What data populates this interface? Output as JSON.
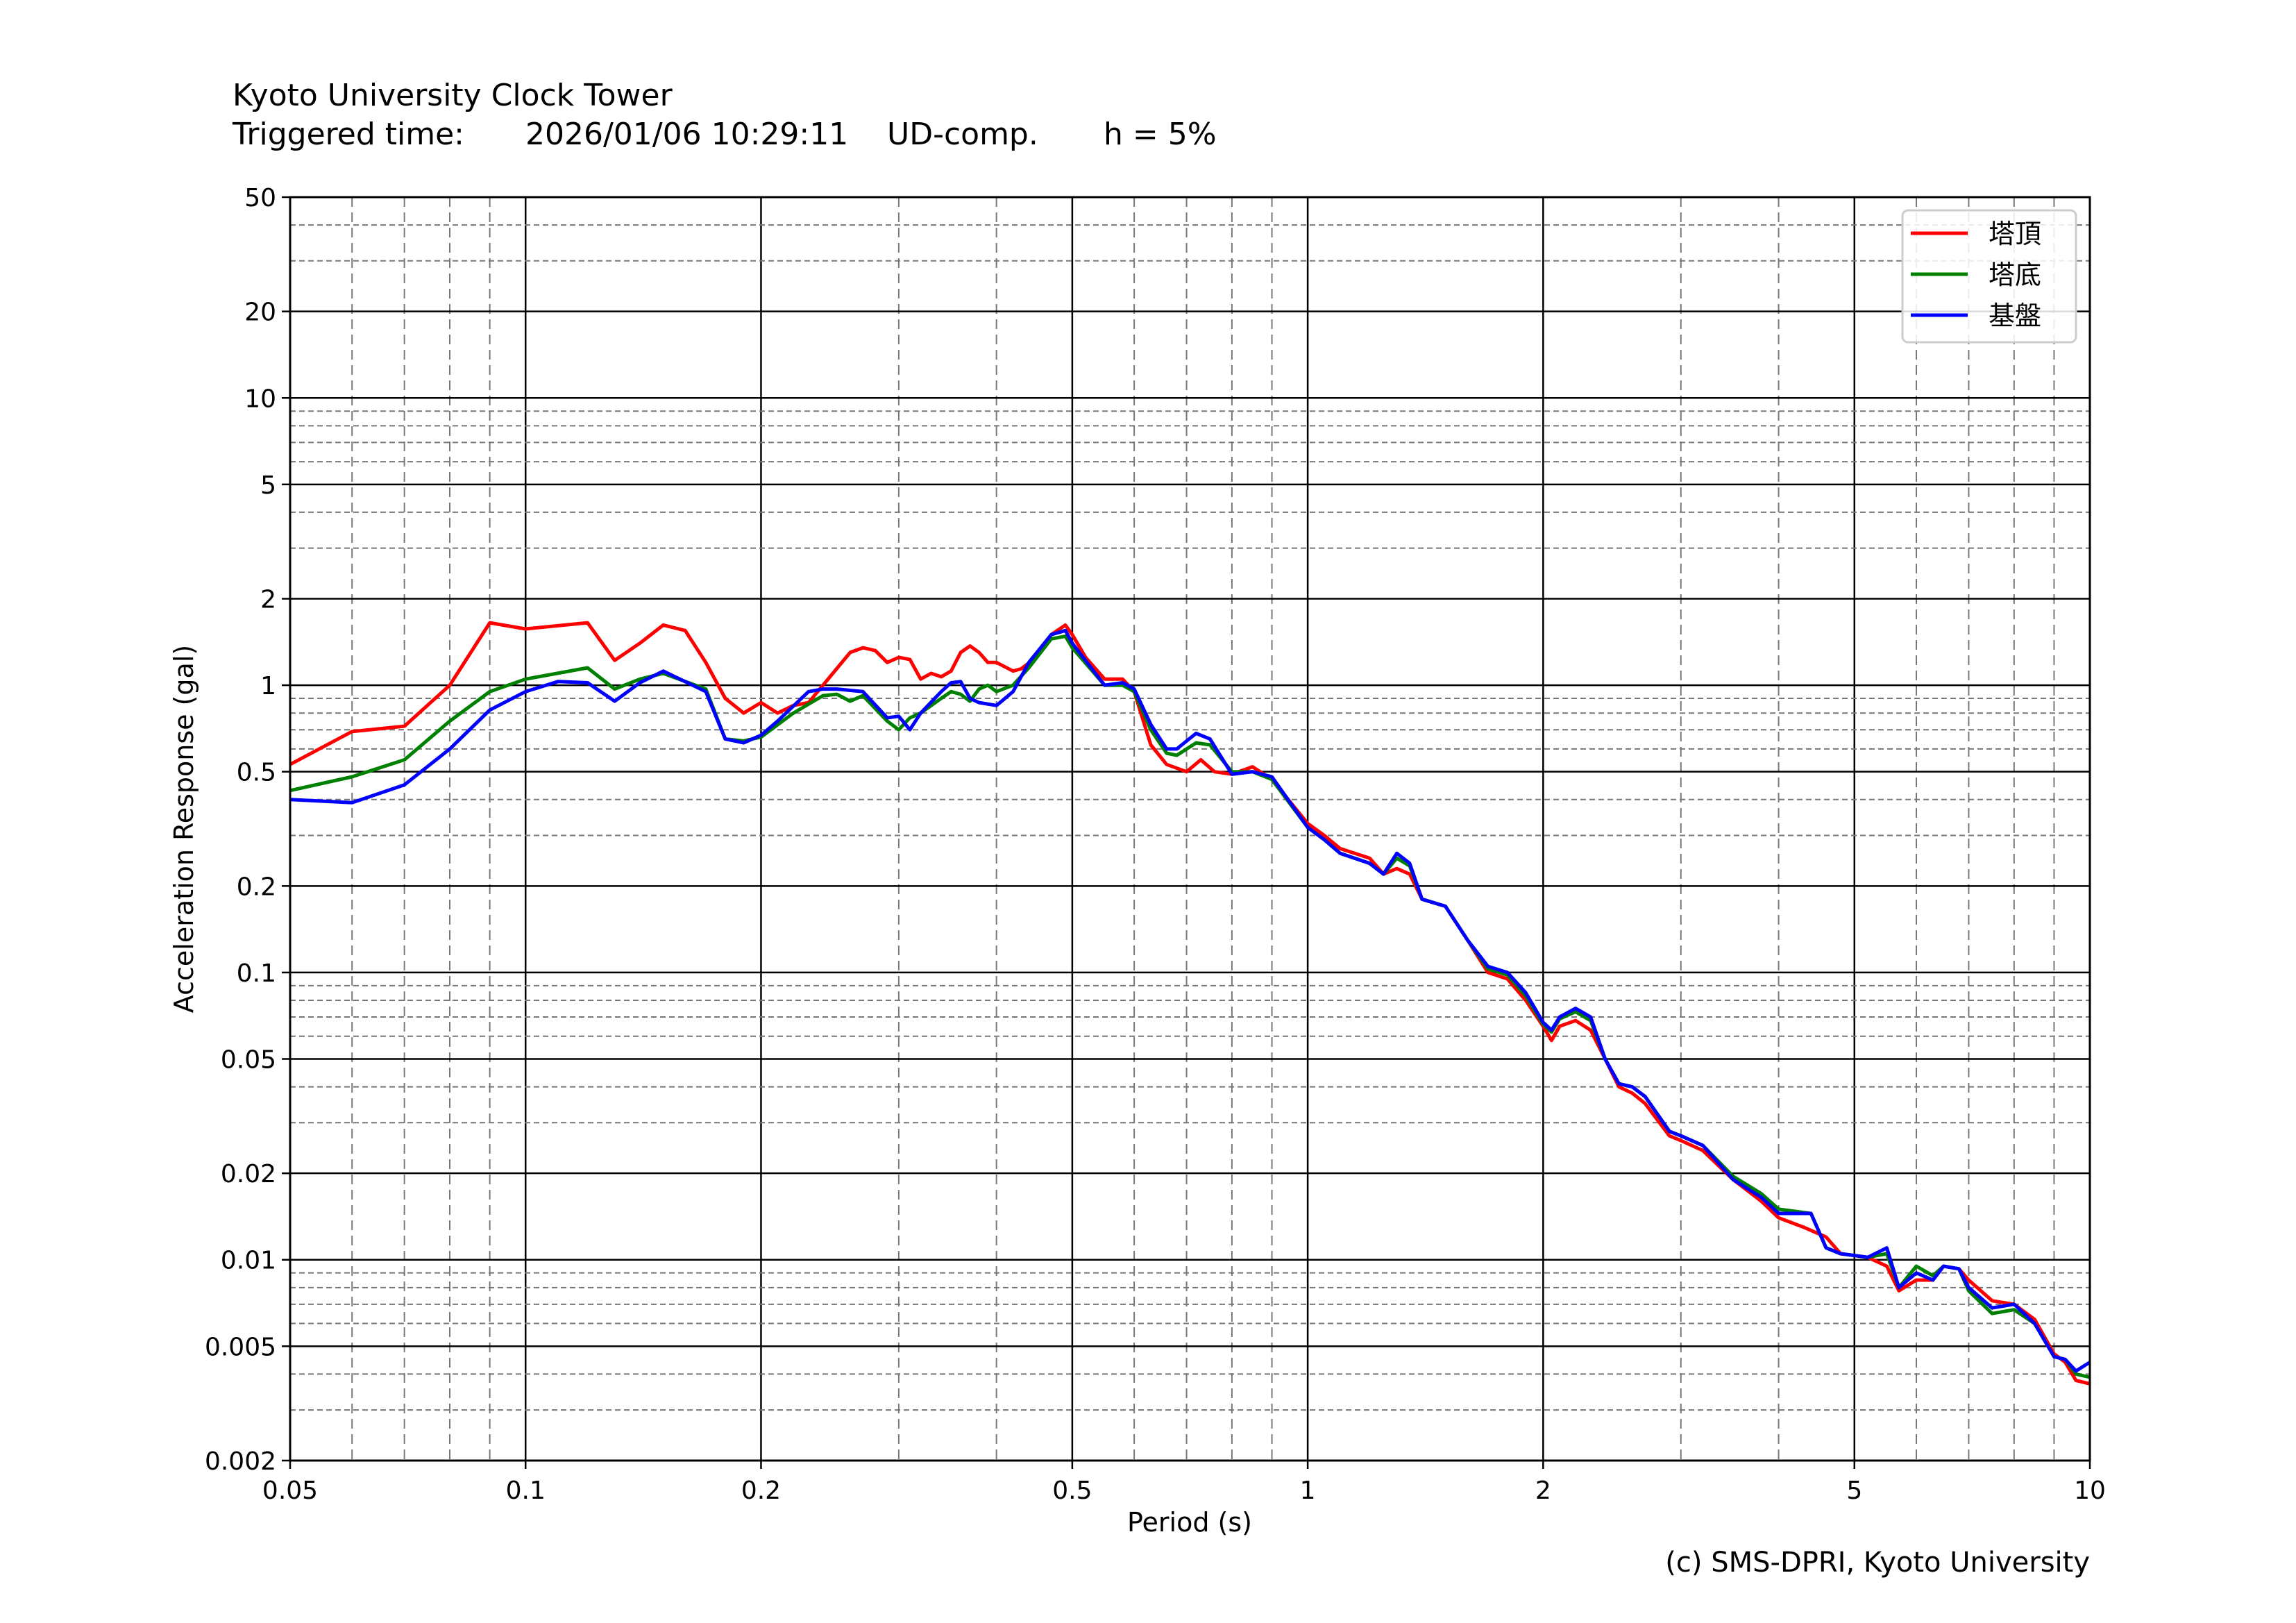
{
  "header": {
    "title": "Kyoto University Clock Tower",
    "trigger_label": "Triggered time:",
    "trigger_time": "2026/01/06 10:29:11",
    "component": "UD-comp.",
    "damping": "h = 5%"
  },
  "footer": {
    "credit": "(c) SMS-DPRI, Kyoto University"
  },
  "chart_data": {
    "type": "line",
    "title": "Kyoto University Clock Tower",
    "xlabel": "Period (s)",
    "ylabel": "Acceleration Response (gal)",
    "xscale": "log",
    "yscale": "log",
    "xlim": [
      0.05,
      10
    ],
    "ylim": [
      0.002,
      50
    ],
    "xticks": [
      0.05,
      0.1,
      0.2,
      0.5,
      1,
      2,
      5,
      10
    ],
    "xtick_labels": [
      "0.05",
      "0.1",
      "0.2",
      "0.5",
      "1",
      "2",
      "5",
      "10"
    ],
    "yticks": [
      0.002,
      0.005,
      0.01,
      0.02,
      0.05,
      0.1,
      0.2,
      0.5,
      1,
      2,
      5,
      10,
      20,
      50
    ],
    "ytick_labels": [
      "0.002",
      "0.005",
      "0.01",
      "0.02",
      "0.05",
      "0.1",
      "0.2",
      "0.5",
      "1",
      "2",
      "5",
      "10",
      "20",
      "50"
    ],
    "grid": true,
    "legend_position": "top-right",
    "series": [
      {
        "name": "塔頂",
        "color": "#ff0000",
        "x": [
          0.05,
          0.06,
          0.07,
          0.08,
          0.09,
          0.1,
          0.12,
          0.13,
          0.14,
          0.15,
          0.16,
          0.17,
          0.18,
          0.19,
          0.2,
          0.21,
          0.22,
          0.23,
          0.24,
          0.26,
          0.27,
          0.28,
          0.29,
          0.3,
          0.31,
          0.32,
          0.33,
          0.34,
          0.35,
          0.36,
          0.37,
          0.38,
          0.39,
          0.4,
          0.42,
          0.43,
          0.45,
          0.47,
          0.49,
          0.5,
          0.52,
          0.55,
          0.58,
          0.6,
          0.63,
          0.66,
          0.7,
          0.73,
          0.76,
          0.8,
          0.85,
          0.9,
          1.0,
          1.05,
          1.1,
          1.2,
          1.25,
          1.3,
          1.35,
          1.4,
          1.5,
          1.6,
          1.7,
          1.8,
          1.9,
          2.0,
          2.05,
          2.1,
          2.2,
          2.3,
          2.4,
          2.5,
          2.6,
          2.7,
          2.9,
          3.0,
          3.2,
          3.5,
          3.8,
          4.0,
          4.3,
          4.6,
          4.8,
          5.2,
          5.5,
          5.7,
          6.0,
          6.3,
          6.5,
          6.8,
          7.0,
          7.5,
          8.0,
          8.5,
          9.0,
          9.3,
          9.6,
          10
        ],
        "y": [
          0.53,
          0.69,
          0.72,
          1.0,
          1.65,
          1.57,
          1.65,
          1.22,
          1.4,
          1.62,
          1.55,
          1.2,
          0.9,
          0.8,
          0.87,
          0.8,
          0.85,
          0.87,
          1.0,
          1.3,
          1.35,
          1.32,
          1.2,
          1.25,
          1.23,
          1.05,
          1.1,
          1.07,
          1.12,
          1.3,
          1.37,
          1.3,
          1.2,
          1.2,
          1.12,
          1.14,
          1.25,
          1.5,
          1.62,
          1.5,
          1.25,
          1.05,
          1.05,
          0.95,
          0.62,
          0.53,
          0.5,
          0.55,
          0.5,
          0.49,
          0.52,
          0.47,
          0.33,
          0.3,
          0.27,
          0.25,
          0.22,
          0.23,
          0.22,
          0.18,
          0.17,
          0.13,
          0.1,
          0.095,
          0.08,
          0.065,
          0.058,
          0.065,
          0.068,
          0.063,
          0.05,
          0.04,
          0.038,
          0.035,
          0.027,
          0.026,
          0.024,
          0.019,
          0.016,
          0.014,
          0.013,
          0.012,
          0.0105,
          0.0102,
          0.0095,
          0.0078,
          0.0085,
          0.0085,
          0.0095,
          0.0093,
          0.0085,
          0.0072,
          0.007,
          0.0062,
          0.0047,
          0.0044,
          0.0038,
          0.0037
        ]
      },
      {
        "name": "塔底",
        "color": "#008000",
        "x": [
          0.05,
          0.06,
          0.07,
          0.08,
          0.09,
          0.1,
          0.12,
          0.13,
          0.14,
          0.15,
          0.17,
          0.18,
          0.19,
          0.2,
          0.22,
          0.24,
          0.25,
          0.26,
          0.27,
          0.29,
          0.3,
          0.31,
          0.32,
          0.34,
          0.35,
          0.36,
          0.37,
          0.38,
          0.39,
          0.4,
          0.42,
          0.44,
          0.47,
          0.49,
          0.5,
          0.55,
          0.58,
          0.6,
          0.63,
          0.66,
          0.68,
          0.72,
          0.75,
          0.8,
          0.85,
          0.9,
          1.0,
          1.05,
          1.1,
          1.2,
          1.25,
          1.3,
          1.35,
          1.4,
          1.5,
          1.6,
          1.7,
          1.8,
          1.9,
          2.0,
          2.05,
          2.1,
          2.2,
          2.3,
          2.4,
          2.5,
          2.6,
          2.7,
          2.9,
          3.0,
          3.2,
          3.5,
          3.8,
          4.0,
          4.4,
          4.6,
          4.8,
          5.2,
          5.5,
          5.7,
          6.0,
          6.3,
          6.5,
          6.8,
          7.0,
          7.5,
          8.0,
          8.5,
          9.0,
          9.3,
          9.6,
          10
        ],
        "y": [
          0.43,
          0.48,
          0.55,
          0.75,
          0.95,
          1.05,
          1.15,
          0.97,
          1.05,
          1.1,
          0.97,
          0.65,
          0.64,
          0.66,
          0.8,
          0.92,
          0.93,
          0.88,
          0.92,
          0.75,
          0.7,
          0.77,
          0.8,
          0.9,
          0.95,
          0.93,
          0.88,
          0.97,
          1.0,
          0.95,
          1.0,
          1.15,
          1.45,
          1.48,
          1.35,
          1.0,
          1.0,
          0.95,
          0.7,
          0.58,
          0.57,
          0.63,
          0.62,
          0.5,
          0.5,
          0.47,
          0.32,
          0.29,
          0.26,
          0.24,
          0.22,
          0.25,
          0.235,
          0.18,
          0.17,
          0.13,
          0.103,
          0.098,
          0.083,
          0.066,
          0.062,
          0.069,
          0.073,
          0.068,
          0.05,
          0.041,
          0.04,
          0.037,
          0.028,
          0.027,
          0.025,
          0.0195,
          0.017,
          0.015,
          0.0145,
          0.011,
          0.0105,
          0.0102,
          0.0105,
          0.008,
          0.0095,
          0.0088,
          0.0095,
          0.0093,
          0.0078,
          0.0065,
          0.0067,
          0.006,
          0.0046,
          0.0045,
          0.004,
          0.0039
        ]
      },
      {
        "name": "基盤",
        "color": "#0000ff",
        "x": [
          0.05,
          0.06,
          0.07,
          0.08,
          0.09,
          0.1,
          0.11,
          0.12,
          0.13,
          0.14,
          0.15,
          0.17,
          0.18,
          0.19,
          0.2,
          0.21,
          0.23,
          0.24,
          0.25,
          0.27,
          0.29,
          0.3,
          0.31,
          0.32,
          0.34,
          0.35,
          0.36,
          0.37,
          0.38,
          0.4,
          0.42,
          0.44,
          0.47,
          0.49,
          0.5,
          0.55,
          0.58,
          0.6,
          0.63,
          0.66,
          0.68,
          0.72,
          0.75,
          0.8,
          0.85,
          0.9,
          1.0,
          1.05,
          1.1,
          1.2,
          1.25,
          1.3,
          1.35,
          1.4,
          1.5,
          1.6,
          1.7,
          1.8,
          1.9,
          2.0,
          2.05,
          2.1,
          2.2,
          2.3,
          2.4,
          2.5,
          2.6,
          2.7,
          2.9,
          3.0,
          3.2,
          3.5,
          3.8,
          4.0,
          4.4,
          4.6,
          4.8,
          5.2,
          5.5,
          5.7,
          6.0,
          6.3,
          6.5,
          6.8,
          7.0,
          7.5,
          8.0,
          8.5,
          9.0,
          9.3,
          9.6,
          10
        ],
        "y": [
          0.4,
          0.39,
          0.45,
          0.6,
          0.82,
          0.95,
          1.03,
          1.02,
          0.88,
          1.02,
          1.12,
          0.95,
          0.65,
          0.63,
          0.67,
          0.75,
          0.95,
          0.97,
          0.97,
          0.95,
          0.77,
          0.78,
          0.7,
          0.8,
          0.95,
          1.02,
          1.03,
          0.9,
          0.87,
          0.85,
          0.95,
          1.2,
          1.5,
          1.55,
          1.4,
          1.0,
          1.02,
          0.97,
          0.73,
          0.6,
          0.6,
          0.68,
          0.65,
          0.49,
          0.5,
          0.48,
          0.32,
          0.29,
          0.26,
          0.24,
          0.22,
          0.26,
          0.24,
          0.18,
          0.17,
          0.13,
          0.105,
          0.1,
          0.085,
          0.067,
          0.063,
          0.07,
          0.075,
          0.07,
          0.05,
          0.041,
          0.04,
          0.037,
          0.028,
          0.027,
          0.025,
          0.019,
          0.0165,
          0.0145,
          0.0145,
          0.011,
          0.0105,
          0.0102,
          0.011,
          0.008,
          0.009,
          0.0085,
          0.0095,
          0.0093,
          0.008,
          0.0068,
          0.007,
          0.006,
          0.0046,
          0.0045,
          0.0041,
          0.0044
        ]
      }
    ]
  }
}
